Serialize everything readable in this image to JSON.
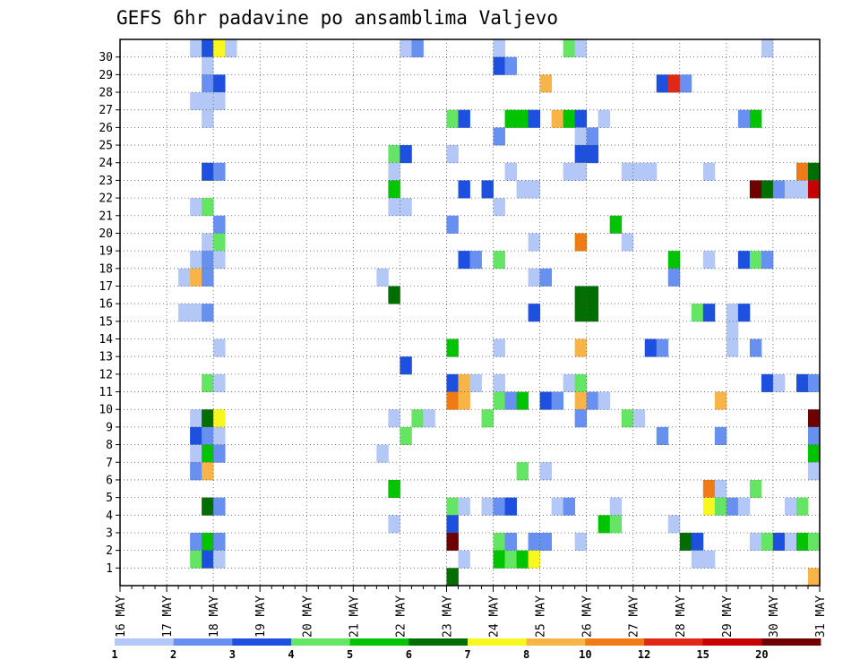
{
  "chart_data": {
    "type": "heatmap",
    "title": "GEFS 6hr padavine po ansamblima Valjevo",
    "xlabel": "",
    "ylabel": "",
    "x_ticks": [
      "16 MAY",
      "17 MAY",
      "18 MAY",
      "19 MAY",
      "20 MAY",
      "21 MAY",
      "22 MAY",
      "23 MAY",
      "24 MAY",
      "25 MAY",
      "26 MAY",
      "27 MAY",
      "28 MAY",
      "29 MAY",
      "30 MAY",
      "31 MAY"
    ],
    "x_unit": "6-hour step (4 per day), 60 steps from 16 MAY 00Z to 31 MAY 00Z",
    "y_ticks": [
      "1",
      "2",
      "3",
      "4",
      "5",
      "6",
      "7",
      "8",
      "9",
      "10",
      "11",
      "12",
      "13",
      "14",
      "15",
      "16",
      "17",
      "18",
      "19",
      "20",
      "21",
      "22",
      "23",
      "24",
      "25",
      "26",
      "27",
      "28",
      "29",
      "30"
    ],
    "colorbar": {
      "tick_labels": [
        "1",
        "2",
        "3",
        "4",
        "5",
        "6",
        "7",
        "8",
        "10",
        "12",
        "15",
        "20"
      ],
      "colors": [
        "#b4c8f8",
        "#6890f0",
        "#1e50e0",
        "#64e664",
        "#00c400",
        "#006e00",
        "#f8f81e",
        "#f8b446",
        "#f07a14",
        "#e02814",
        "#c80000",
        "#6e0000"
      ]
    },
    "grid": true,
    "cells": [
      {
        "m": 30,
        "s": 6,
        "c": 1
      },
      {
        "m": 30,
        "s": 7,
        "c": 3
      },
      {
        "m": 30,
        "s": 8,
        "c": 7
      },
      {
        "m": 30,
        "s": 9,
        "c": 1
      },
      {
        "m": 30,
        "s": 24,
        "c": 1
      },
      {
        "m": 30,
        "s": 25,
        "c": 2
      },
      {
        "m": 30,
        "s": 32,
        "c": 1
      },
      {
        "m": 30,
        "s": 38,
        "c": 4
      },
      {
        "m": 30,
        "s": 39,
        "c": 1
      },
      {
        "m": 30,
        "s": 55,
        "c": 1
      },
      {
        "m": 29,
        "s": 7,
        "c": 1
      },
      {
        "m": 29,
        "s": 32,
        "c": 3
      },
      {
        "m": 29,
        "s": 33,
        "c": 2
      },
      {
        "m": 28,
        "s": 7,
        "c": 2
      },
      {
        "m": 28,
        "s": 8,
        "c": 3
      },
      {
        "m": 28,
        "s": 36,
        "c": 8
      },
      {
        "m": 28,
        "s": 46,
        "c": 3
      },
      {
        "m": 28,
        "s": 47,
        "c": 10
      },
      {
        "m": 28,
        "s": 48,
        "c": 2
      },
      {
        "m": 27,
        "s": 6,
        "c": 1
      },
      {
        "m": 27,
        "s": 7,
        "c": 1
      },
      {
        "m": 27,
        "s": 8,
        "c": 1
      },
      {
        "m": 26,
        "s": 7,
        "c": 1
      },
      {
        "m": 26,
        "s": 28,
        "c": 4
      },
      {
        "m": 26,
        "s": 29,
        "c": 3
      },
      {
        "m": 26,
        "s": 33,
        "c": 5
      },
      {
        "m": 26,
        "s": 34,
        "c": 5
      },
      {
        "m": 26,
        "s": 35,
        "c": 3
      },
      {
        "m": 26,
        "s": 37,
        "c": 8
      },
      {
        "m": 26,
        "s": 38,
        "c": 5
      },
      {
        "m": 26,
        "s": 39,
        "c": 3
      },
      {
        "m": 26,
        "s": 41,
        "c": 1
      },
      {
        "m": 26,
        "s": 53,
        "c": 2
      },
      {
        "m": 26,
        "s": 54,
        "c": 5
      },
      {
        "m": 25,
        "s": 32,
        "c": 2
      },
      {
        "m": 25,
        "s": 39,
        "c": 1
      },
      {
        "m": 25,
        "s": 40,
        "c": 2
      },
      {
        "m": 24,
        "s": 23,
        "c": 4
      },
      {
        "m": 24,
        "s": 24,
        "c": 3
      },
      {
        "m": 24,
        "s": 28,
        "c": 1
      },
      {
        "m": 24,
        "s": 39,
        "c": 3
      },
      {
        "m": 24,
        "s": 40,
        "c": 3
      },
      {
        "m": 23,
        "s": 7,
        "c": 3
      },
      {
        "m": 23,
        "s": 8,
        "c": 2
      },
      {
        "m": 23,
        "s": 23,
        "c": 1
      },
      {
        "m": 23,
        "s": 33,
        "c": 1
      },
      {
        "m": 23,
        "s": 38,
        "c": 1
      },
      {
        "m": 23,
        "s": 39,
        "c": 1
      },
      {
        "m": 23,
        "s": 43,
        "c": 1
      },
      {
        "m": 23,
        "s": 44,
        "c": 1
      },
      {
        "m": 23,
        "s": 45,
        "c": 1
      },
      {
        "m": 23,
        "s": 50,
        "c": 1
      },
      {
        "m": 23,
        "s": 58,
        "c": 9
      },
      {
        "m": 23,
        "s": 59,
        "c": 6
      },
      {
        "m": 22,
        "s": 23,
        "c": 5
      },
      {
        "m": 22,
        "s": 29,
        "c": 3
      },
      {
        "m": 22,
        "s": 31,
        "c": 3
      },
      {
        "m": 22,
        "s": 34,
        "c": 1
      },
      {
        "m": 22,
        "s": 35,
        "c": 1
      },
      {
        "m": 22,
        "s": 54,
        "c": 12
      },
      {
        "m": 22,
        "s": 55,
        "c": 6
      },
      {
        "m": 22,
        "s": 56,
        "c": 2
      },
      {
        "m": 22,
        "s": 57,
        "c": 1
      },
      {
        "m": 22,
        "s": 58,
        "c": 1
      },
      {
        "m": 22,
        "s": 59,
        "c": 11
      },
      {
        "m": 21,
        "s": 6,
        "c": 1
      },
      {
        "m": 21,
        "s": 7,
        "c": 4
      },
      {
        "m": 21,
        "s": 23,
        "c": 1
      },
      {
        "m": 21,
        "s": 24,
        "c": 1
      },
      {
        "m": 21,
        "s": 32,
        "c": 1
      },
      {
        "m": 20,
        "s": 8,
        "c": 2
      },
      {
        "m": 20,
        "s": 28,
        "c": 2
      },
      {
        "m": 20,
        "s": 42,
        "c": 5
      },
      {
        "m": 19,
        "s": 7,
        "c": 1
      },
      {
        "m": 19,
        "s": 8,
        "c": 4
      },
      {
        "m": 19,
        "s": 35,
        "c": 1
      },
      {
        "m": 19,
        "s": 39,
        "c": 9
      },
      {
        "m": 19,
        "s": 43,
        "c": 1
      },
      {
        "m": 18,
        "s": 6,
        "c": 1
      },
      {
        "m": 18,
        "s": 7,
        "c": 2
      },
      {
        "m": 18,
        "s": 8,
        "c": 1
      },
      {
        "m": 18,
        "s": 29,
        "c": 3
      },
      {
        "m": 18,
        "s": 30,
        "c": 2
      },
      {
        "m": 18,
        "s": 32,
        "c": 4
      },
      {
        "m": 18,
        "s": 47,
        "c": 5
      },
      {
        "m": 18,
        "s": 50,
        "c": 1
      },
      {
        "m": 18,
        "s": 53,
        "c": 3
      },
      {
        "m": 18,
        "s": 54,
        "c": 4
      },
      {
        "m": 18,
        "s": 55,
        "c": 2
      },
      {
        "m": 17,
        "s": 5,
        "c": 1
      },
      {
        "m": 17,
        "s": 6,
        "c": 8
      },
      {
        "m": 17,
        "s": 7,
        "c": 2
      },
      {
        "m": 17,
        "s": 22,
        "c": 1
      },
      {
        "m": 17,
        "s": 35,
        "c": 1
      },
      {
        "m": 17,
        "s": 36,
        "c": 2
      },
      {
        "m": 17,
        "s": 47,
        "c": 2
      },
      {
        "m": 16,
        "s": 23,
        "c": 6
      },
      {
        "m": 16,
        "s": 39,
        "c": 6
      },
      {
        "m": 16,
        "s": 40,
        "c": 6
      },
      {
        "m": 15,
        "s": 5,
        "c": 1
      },
      {
        "m": 15,
        "s": 6,
        "c": 1
      },
      {
        "m": 15,
        "s": 7,
        "c": 2
      },
      {
        "m": 15,
        "s": 35,
        "c": 3
      },
      {
        "m": 15,
        "s": 39,
        "c": 6
      },
      {
        "m": 15,
        "s": 40,
        "c": 6
      },
      {
        "m": 15,
        "s": 49,
        "c": 4
      },
      {
        "m": 15,
        "s": 50,
        "c": 3
      },
      {
        "m": 15,
        "s": 52,
        "c": 1
      },
      {
        "m": 15,
        "s": 53,
        "c": 3
      },
      {
        "m": 14,
        "s": 52,
        "c": 1
      },
      {
        "m": 13,
        "s": 8,
        "c": 1
      },
      {
        "m": 13,
        "s": 28,
        "c": 5
      },
      {
        "m": 13,
        "s": 32,
        "c": 1
      },
      {
        "m": 13,
        "s": 39,
        "c": 8
      },
      {
        "m": 13,
        "s": 45,
        "c": 3
      },
      {
        "m": 13,
        "s": 46,
        "c": 2
      },
      {
        "m": 13,
        "s": 52,
        "c": 1
      },
      {
        "m": 13,
        "s": 54,
        "c": 2
      },
      {
        "m": 12,
        "s": 24,
        "c": 3
      },
      {
        "m": 11,
        "s": 7,
        "c": 4
      },
      {
        "m": 11,
        "s": 8,
        "c": 1
      },
      {
        "m": 11,
        "s": 28,
        "c": 3
      },
      {
        "m": 11,
        "s": 29,
        "c": 8
      },
      {
        "m": 11,
        "s": 30,
        "c": 1
      },
      {
        "m": 11,
        "s": 32,
        "c": 1
      },
      {
        "m": 11,
        "s": 38,
        "c": 1
      },
      {
        "m": 11,
        "s": 39,
        "c": 4
      },
      {
        "m": 11,
        "s": 55,
        "c": 3
      },
      {
        "m": 11,
        "s": 56,
        "c": 1
      },
      {
        "m": 11,
        "s": 58,
        "c": 3
      },
      {
        "m": 11,
        "s": 59,
        "c": 2
      },
      {
        "m": 10,
        "s": 28,
        "c": 9
      },
      {
        "m": 10,
        "s": 29,
        "c": 8
      },
      {
        "m": 10,
        "s": 32,
        "c": 4
      },
      {
        "m": 10,
        "s": 33,
        "c": 2
      },
      {
        "m": 10,
        "s": 34,
        "c": 5
      },
      {
        "m": 10,
        "s": 36,
        "c": 3
      },
      {
        "m": 10,
        "s": 37,
        "c": 2
      },
      {
        "m": 10,
        "s": 39,
        "c": 8
      },
      {
        "m": 10,
        "s": 40,
        "c": 2
      },
      {
        "m": 10,
        "s": 41,
        "c": 1
      },
      {
        "m": 10,
        "s": 51,
        "c": 8
      },
      {
        "m": 9,
        "s": 6,
        "c": 1
      },
      {
        "m": 9,
        "s": 7,
        "c": 6
      },
      {
        "m": 9,
        "s": 8,
        "c": 7
      },
      {
        "m": 9,
        "s": 23,
        "c": 1
      },
      {
        "m": 9,
        "s": 25,
        "c": 4
      },
      {
        "m": 9,
        "s": 26,
        "c": 1
      },
      {
        "m": 9,
        "s": 31,
        "c": 4
      },
      {
        "m": 9,
        "s": 39,
        "c": 2
      },
      {
        "m": 9,
        "s": 43,
        "c": 4
      },
      {
        "m": 9,
        "s": 44,
        "c": 1
      },
      {
        "m": 9,
        "s": 59,
        "c": 12
      },
      {
        "m": 8,
        "s": 6,
        "c": 3
      },
      {
        "m": 8,
        "s": 7,
        "c": 2
      },
      {
        "m": 8,
        "s": 8,
        "c": 1
      },
      {
        "m": 8,
        "s": 24,
        "c": 4
      },
      {
        "m": 8,
        "s": 46,
        "c": 2
      },
      {
        "m": 8,
        "s": 51,
        "c": 2
      },
      {
        "m": 8,
        "s": 59,
        "c": 2
      },
      {
        "m": 7,
        "s": 6,
        "c": 1
      },
      {
        "m": 7,
        "s": 7,
        "c": 5
      },
      {
        "m": 7,
        "s": 8,
        "c": 2
      },
      {
        "m": 7,
        "s": 22,
        "c": 1
      },
      {
        "m": 7,
        "s": 59,
        "c": 5
      },
      {
        "m": 6,
        "s": 6,
        "c": 2
      },
      {
        "m": 6,
        "s": 7,
        "c": 8
      },
      {
        "m": 6,
        "s": 34,
        "c": 4
      },
      {
        "m": 6,
        "s": 36,
        "c": 1
      },
      {
        "m": 6,
        "s": 59,
        "c": 1
      },
      {
        "m": 5,
        "s": 23,
        "c": 5
      },
      {
        "m": 5,
        "s": 50,
        "c": 9
      },
      {
        "m": 5,
        "s": 51,
        "c": 1
      },
      {
        "m": 5,
        "s": 54,
        "c": 4
      },
      {
        "m": 4,
        "s": 7,
        "c": 6
      },
      {
        "m": 4,
        "s": 8,
        "c": 2
      },
      {
        "m": 4,
        "s": 28,
        "c": 4
      },
      {
        "m": 4,
        "s": 29,
        "c": 1
      },
      {
        "m": 4,
        "s": 31,
        "c": 1
      },
      {
        "m": 4,
        "s": 32,
        "c": 2
      },
      {
        "m": 4,
        "s": 33,
        "c": 3
      },
      {
        "m": 4,
        "s": 37,
        "c": 1
      },
      {
        "m": 4,
        "s": 38,
        "c": 2
      },
      {
        "m": 4,
        "s": 42,
        "c": 1
      },
      {
        "m": 4,
        "s": 50,
        "c": 7
      },
      {
        "m": 4,
        "s": 51,
        "c": 4
      },
      {
        "m": 4,
        "s": 52,
        "c": 2
      },
      {
        "m": 4,
        "s": 53,
        "c": 1
      },
      {
        "m": 4,
        "s": 57,
        "c": 1
      },
      {
        "m": 4,
        "s": 58,
        "c": 4
      },
      {
        "m": 3,
        "s": 23,
        "c": 1
      },
      {
        "m": 3,
        "s": 28,
        "c": 3
      },
      {
        "m": 3,
        "s": 41,
        "c": 5
      },
      {
        "m": 3,
        "s": 42,
        "c": 4
      },
      {
        "m": 3,
        "s": 47,
        "c": 1
      },
      {
        "m": 2,
        "s": 6,
        "c": 2
      },
      {
        "m": 2,
        "s": 7,
        "c": 5
      },
      {
        "m": 2,
        "s": 8,
        "c": 2
      },
      {
        "m": 2,
        "s": 28,
        "c": 12
      },
      {
        "m": 2,
        "s": 32,
        "c": 4
      },
      {
        "m": 2,
        "s": 33,
        "c": 2
      },
      {
        "m": 2,
        "s": 35,
        "c": 2
      },
      {
        "m": 2,
        "s": 36,
        "c": 2
      },
      {
        "m": 2,
        "s": 39,
        "c": 1
      },
      {
        "m": 2,
        "s": 48,
        "c": 6
      },
      {
        "m": 2,
        "s": 49,
        "c": 3
      },
      {
        "m": 2,
        "s": 54,
        "c": 1
      },
      {
        "m": 2,
        "s": 55,
        "c": 4
      },
      {
        "m": 2,
        "s": 56,
        "c": 3
      },
      {
        "m": 2,
        "s": 57,
        "c": 1
      },
      {
        "m": 2,
        "s": 58,
        "c": 5
      },
      {
        "m": 2,
        "s": 59,
        "c": 4
      },
      {
        "m": 1,
        "s": 6,
        "c": 4
      },
      {
        "m": 1,
        "s": 7,
        "c": 3
      },
      {
        "m": 1,
        "s": 8,
        "c": 1
      },
      {
        "m": 1,
        "s": 29,
        "c": 1
      },
      {
        "m": 1,
        "s": 32,
        "c": 5
      },
      {
        "m": 1,
        "s": 33,
        "c": 4
      },
      {
        "m": 1,
        "s": 34,
        "c": 5
      },
      {
        "m": 1,
        "s": 35,
        "c": 7
      },
      {
        "m": 1,
        "s": 49,
        "c": 1
      },
      {
        "m": 1,
        "s": 50,
        "c": 1
      },
      {
        "m": 0,
        "s": 28,
        "c": 6
      },
      {
        "m": 0,
        "s": 59,
        "c": 8
      }
    ]
  }
}
